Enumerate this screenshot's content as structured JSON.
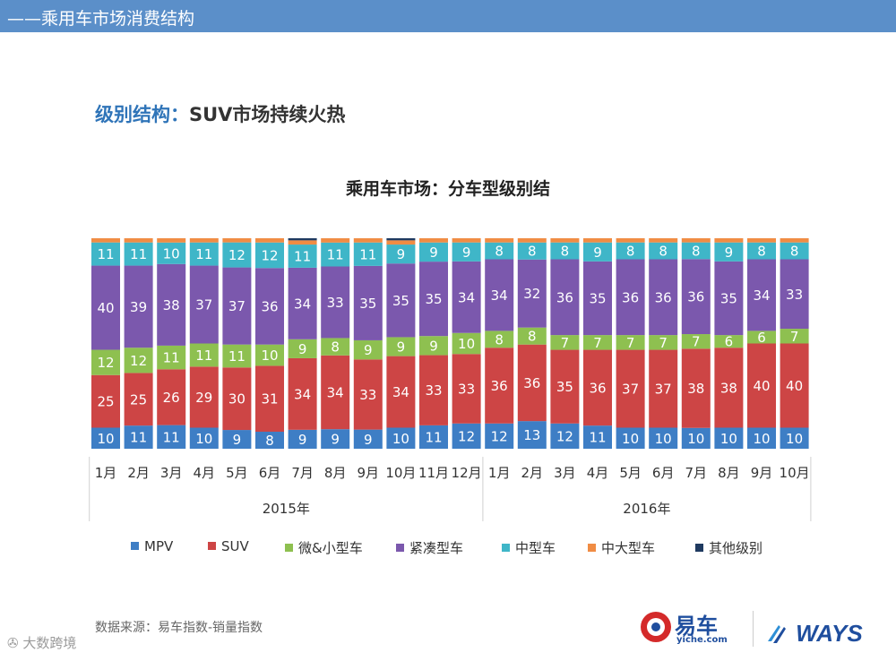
{
  "header": {
    "title": "——乘用车市场消费结构"
  },
  "headline": {
    "accent": "级别结构：",
    "text": "SUV市场持续火热"
  },
  "chart_data": {
    "type": "stacked-bar",
    "title": "乘用车市场：分车型级别结",
    "unit": "%",
    "categories": [
      "1月",
      "2月",
      "3月",
      "4月",
      "5月",
      "6月",
      "7月",
      "8月",
      "9月",
      "10月",
      "11月",
      "12月",
      "1月",
      "2月",
      "3月",
      "4月",
      "5月",
      "6月",
      "7月",
      "8月",
      "9月",
      "10月"
    ],
    "groups": [
      {
        "label": "2015年",
        "count": 12
      },
      {
        "label": "2016年",
        "count": 10
      }
    ],
    "series": [
      {
        "name": "MPV",
        "color": "#3e7ec5",
        "values": [
          10,
          11,
          11,
          10,
          9,
          8,
          9,
          9,
          9,
          10,
          11,
          12,
          12,
          13,
          12,
          11,
          10,
          10,
          10,
          10,
          10,
          10
        ]
      },
      {
        "name": "SUV",
        "color": "#cd4545",
        "values": [
          25,
          25,
          26,
          29,
          30,
          31,
          34,
          34,
          33,
          34,
          33,
          33,
          36,
          36,
          35,
          36,
          37,
          37,
          38,
          38,
          40,
          40
        ]
      },
      {
        "name": "微&小型车",
        "color": "#8ec050",
        "values": [
          12,
          12,
          11,
          11,
          11,
          10,
          9,
          8,
          9,
          9,
          9,
          10,
          8,
          8,
          7,
          7,
          7,
          7,
          7,
          6,
          6,
          7
        ]
      },
      {
        "name": "紧凑型车",
        "color": "#7b58ad",
        "values": [
          40,
          39,
          38,
          37,
          37,
          36,
          34,
          33,
          35,
          35,
          35,
          34,
          34,
          32,
          36,
          35,
          36,
          36,
          36,
          35,
          34,
          33
        ]
      },
      {
        "name": "中型车",
        "color": "#3fb6c8",
        "values": [
          11,
          11,
          10,
          11,
          12,
          12,
          11,
          11,
          11,
          9,
          9,
          9,
          8,
          8,
          8,
          9,
          8,
          8,
          8,
          9,
          8,
          8
        ]
      },
      {
        "name": "中大型车",
        "color": "#f08c44",
        "values": [
          2,
          2,
          2,
          2,
          2,
          2,
          2,
          2,
          2,
          2,
          2,
          2,
          2,
          2,
          2,
          2,
          2,
          2,
          2,
          2,
          2,
          2
        ]
      },
      {
        "name": "其他级别",
        "color": "#1f3a60",
        "values": [
          0,
          0,
          0,
          0,
          0,
          0,
          1,
          0,
          0,
          1,
          0,
          0,
          0,
          0,
          0,
          0,
          0,
          0,
          0,
          0,
          0,
          0
        ]
      }
    ]
  },
  "source": "数据来源：易车指数-销量指数",
  "watermark": "大数跨境",
  "logos": {
    "yiche_brand": "易车",
    "yiche_url": "yiche.com",
    "ways": "WAYS"
  }
}
